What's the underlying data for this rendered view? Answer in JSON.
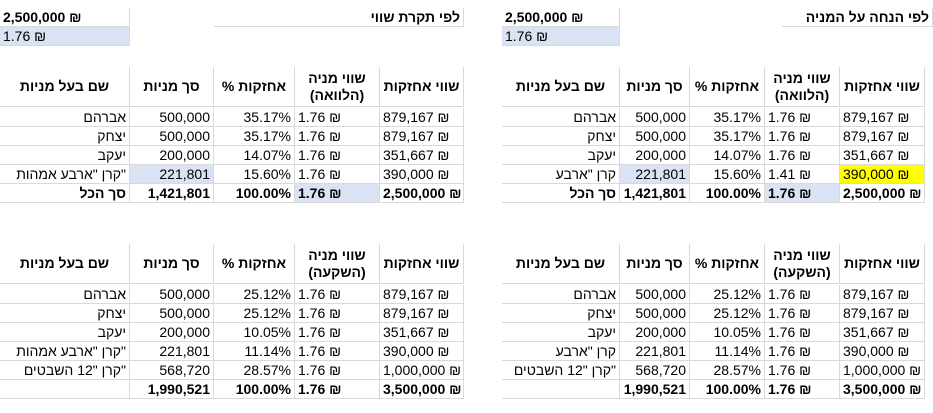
{
  "currency_symbol": "₪",
  "colors": {
    "highlight_blue": "#dae3f3",
    "highlight_yellow": "#ffff00",
    "gridline": "#d9d9d9"
  },
  "left_block": {
    "title": "לפי תקרת שווי",
    "total_value": "2,500,000 ₪",
    "share_price": "1.76 ₪"
  },
  "right_block": {
    "title": "לפי הנחה על המניה",
    "total_value": "2,500,000 ₪",
    "share_price": "1.76 ₪"
  },
  "headers_loan": {
    "holdings_value": "שווי אחזקות",
    "share_value": "שווי מניה (הלוואה)",
    "holding_pct": "% אחזקות",
    "total_shares": "סך מניות",
    "holder_name": "שם בעל מניות"
  },
  "headers_invest": {
    "holdings_value": "שווי אחזקות",
    "share_value": "שווי מניה (השקעה)",
    "holding_pct": "% אחזקות",
    "total_shares": "סך מניות",
    "holder_name": "שם בעל מניות"
  },
  "tables": {
    "right_loan": [
      [
        "879,167 ₪",
        "1.76 ₪",
        "35.17%",
        "500,000",
        "אברהם"
      ],
      [
        "879,167 ₪",
        "1.76 ₪",
        "35.17%",
        "500,000",
        "יצחק"
      ],
      [
        "351,667 ₪",
        "1.76 ₪",
        "14.07%",
        "200,000",
        "יעקב"
      ],
      [
        "390,000 ₪",
        "1.41 ₪",
        "15.60%",
        "221,801",
        "קרן \"ארבע"
      ],
      [
        "2,500,000 ₪",
        "1.76 ₪",
        "100.00%",
        "1,421,801",
        "סך הכל"
      ]
    ],
    "left_loan": [
      [
        "879,167 ₪",
        "1.76 ₪",
        "35.17%",
        "500,000",
        "אברהם"
      ],
      [
        "879,167 ₪",
        "1.76 ₪",
        "35.17%",
        "500,000",
        "יצחק"
      ],
      [
        "351,667 ₪",
        "1.76 ₪",
        "14.07%",
        "200,000",
        "יעקב"
      ],
      [
        "390,000 ₪",
        "1.76 ₪",
        "15.60%",
        "221,801",
        "קרן \"ארבע אמהות\""
      ],
      [
        "2,500,000 ₪",
        "1.76 ₪",
        "100.00%",
        "1,421,801",
        "סך הכל"
      ]
    ],
    "right_invest": [
      [
        "879,167 ₪",
        "1.76 ₪",
        "25.12%",
        "500,000",
        "אברהם"
      ],
      [
        "879,167 ₪",
        "1.76 ₪",
        "25.12%",
        "500,000",
        "יצחק"
      ],
      [
        "351,667 ₪",
        "1.76 ₪",
        "10.05%",
        "200,000",
        "יעקב"
      ],
      [
        "390,000 ₪",
        "1.76 ₪",
        "11.14%",
        "221,801",
        "קרן \"ארבע"
      ],
      [
        "1,000,000 ₪",
        "1.76 ₪",
        "28.57%",
        "568,720",
        "קרן \"12 השבטים\""
      ],
      [
        "3,500,000 ₪",
        "1.76 ₪",
        "100.00%",
        "1,990,521",
        ""
      ]
    ],
    "left_invest": [
      [
        "879,167 ₪",
        "1.76 ₪",
        "25.12%",
        "500,000",
        "אברהם"
      ],
      [
        "879,167 ₪",
        "1.76 ₪",
        "25.12%",
        "500,000",
        "יצחק"
      ],
      [
        "351,667 ₪",
        "1.76 ₪",
        "10.05%",
        "200,000",
        "יעקב"
      ],
      [
        "390,000 ₪",
        "1.76 ₪",
        "11.14%",
        "221,801",
        "קרן \"ארבע אמהות\""
      ],
      [
        "1,000,000 ₪",
        "1.76 ₪",
        "28.57%",
        "568,720",
        "קרן \"12 השבטים\""
      ],
      [
        "3,500,000 ₪",
        "1.76 ₪",
        "100.00%",
        "1,990,521",
        ""
      ]
    ]
  }
}
